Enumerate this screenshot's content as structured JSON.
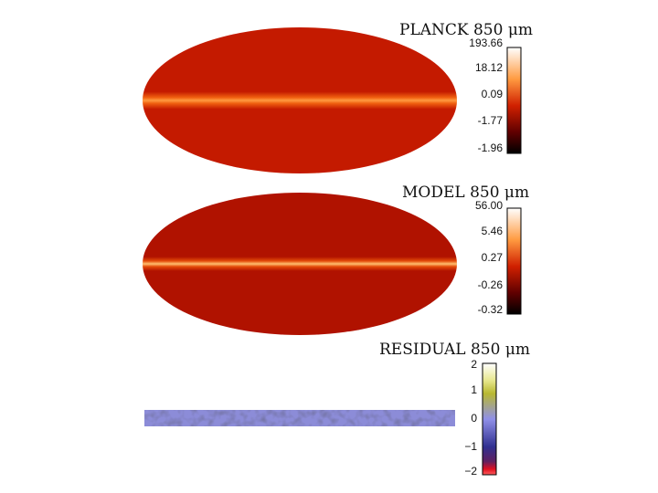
{
  "panels": [
    {
      "title": "PLANCK  850  μm",
      "ticks": [
        "193.66",
        "18.12",
        "0.09",
        "-1.77",
        "-1.96"
      ]
    },
    {
      "title": "MODEL  850  μm",
      "ticks": [
        "56.00",
        "5.46",
        "0.27",
        "-0.26",
        "-0.32"
      ]
    },
    {
      "title": "RESIDUAL  850  μm",
      "ticks": [
        "2",
        "1",
        "0",
        "−1",
        "−2"
      ]
    }
  ]
}
